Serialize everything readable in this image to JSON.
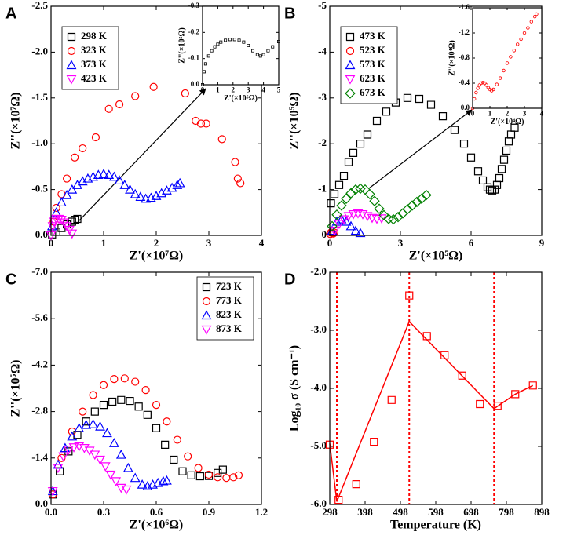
{
  "chart_data": [
    {
      "type": "scatter",
      "label": "A",
      "xlabel": "Z'(×10⁷Ω)",
      "ylabel": "Z''(×10⁷Ω)",
      "legend": "upper left",
      "xlim": [
        0,
        4
      ],
      "xticks": [
        0,
        1,
        2,
        3,
        4
      ],
      "ylim": [
        0,
        -2.5
      ],
      "yticks": [
        {
          "value": 0,
          "label": "0.0"
        },
        -0.5,
        {
          "value": -1,
          "label": "-1.0"
        },
        -1.5,
        {
          "value": -2,
          "label": "-2.0"
        },
        -2.5
      ],
      "series": [
        {
          "name": "298 K",
          "color": "#000000",
          "marker": "square",
          "x": [
            0.02,
            0.1,
            0.2,
            0.3,
            0.4,
            0.45,
            0.5
          ],
          "y": [
            -0.01,
            -0.04,
            -0.08,
            -0.12,
            -0.15,
            -0.17,
            -0.18
          ]
        },
        {
          "name": "323 K",
          "color": "#ff0000",
          "marker": "circle",
          "x": [
            0.05,
            0.1,
            0.2,
            0.3,
            0.45,
            0.6,
            0.85,
            1.1,
            1.3,
            1.6,
            1.95,
            2.55,
            2.75,
            2.85,
            2.95,
            3.25,
            3.5,
            3.55,
            3.6
          ],
          "y": [
            -0.15,
            -0.3,
            -0.45,
            -0.62,
            -0.85,
            -0.95,
            -1.07,
            -1.38,
            -1.43,
            -1.52,
            -1.62,
            -1.55,
            -1.25,
            -1.22,
            -1.22,
            -1.05,
            -0.8,
            -0.62,
            -0.57
          ]
        },
        {
          "name": "373 K",
          "color": "#0000ff",
          "marker": "triangle",
          "x": [
            0.02,
            0.1,
            0.2,
            0.3,
            0.4,
            0.5,
            0.6,
            0.7,
            0.8,
            0.9,
            1.0,
            1.1,
            1.2,
            1.3,
            1.4,
            1.5,
            1.6,
            1.7,
            1.8,
            1.9,
            2.0,
            2.1,
            2.2,
            2.3,
            2.4,
            2.45
          ],
          "y": [
            -0.1,
            -0.25,
            -0.36,
            -0.44,
            -0.5,
            -0.55,
            -0.59,
            -0.62,
            -0.64,
            -0.66,
            -0.67,
            -0.66,
            -0.64,
            -0.6,
            -0.55,
            -0.5,
            -0.45,
            -0.42,
            -0.4,
            -0.41,
            -0.43,
            -0.46,
            -0.49,
            -0.52,
            -0.55,
            -0.57
          ]
        },
        {
          "name": "423 K",
          "color": "#ff00ff",
          "marker": "triangle-down",
          "x": [
            0,
            0.03,
            0.06,
            0.1,
            0.15,
            0.2,
            0.25,
            0.3,
            0.35,
            0.4
          ],
          "y": [
            0,
            -0.1,
            -0.15,
            -0.18,
            -0.18,
            -0.17,
            -0.14,
            -0.1,
            -0.06,
            -0.02
          ]
        }
      ]
    },
    {
      "type": "scatter",
      "xlabel": "Z'(×10⁵Ω)",
      "ylabel": "Z''(×10⁵Ω)",
      "xlim": [
        0,
        5
      ],
      "xticks": [
        0,
        1,
        2,
        3,
        4,
        5
      ],
      "ylim": [
        0,
        -0.3
      ],
      "yticks": [
        {
          "value": 0,
          "label": "0.0"
        },
        -0.1,
        -0.2,
        -0.3
      ],
      "series": [
        {
          "color": "#000000",
          "marker": "square",
          "x": [
            0,
            0.1,
            0.2,
            0.4,
            0.6,
            0.8,
            1.0,
            1.2,
            1.5,
            1.8,
            2.1,
            2.4,
            2.7,
            3.0,
            3.3,
            3.6,
            3.8,
            4.0,
            4.3,
            4.6,
            5.0
          ],
          "y": [
            0,
            -0.05,
            -0.08,
            -0.11,
            -0.13,
            -0.145,
            -0.155,
            -0.163,
            -0.17,
            -0.173,
            -0.173,
            -0.17,
            -0.163,
            -0.15,
            -0.13,
            -0.115,
            -0.11,
            -0.115,
            -0.13,
            -0.145,
            -0.165
          ]
        }
      ]
    },
    {
      "type": "scatter",
      "label": "B",
      "xlabel": "Z'(×10⁵Ω)",
      "ylabel": "Z''(×10⁵Ω)",
      "legend": "upper left",
      "xlim": [
        0,
        9
      ],
      "xticks": [
        0,
        3,
        6,
        9
      ],
      "ylim": [
        0,
        -5
      ],
      "yticks": [
        0,
        -1,
        -2,
        -3,
        -4,
        -5
      ],
      "series": [
        {
          "name": "473 K",
          "color": "#000000",
          "marker": "square",
          "x": [
            0.05,
            0.2,
            0.4,
            0.6,
            0.8,
            1.0,
            1.3,
            1.6,
            2.0,
            2.4,
            2.8,
            3.3,
            3.8,
            4.3,
            4.8,
            5.3,
            5.7,
            6.0,
            6.3,
            6.5,
            6.7,
            6.8,
            6.9,
            7.0,
            7.1,
            7.2,
            7.3,
            7.4,
            7.5,
            7.6,
            7.7,
            7.85
          ],
          "y": [
            -0.7,
            -0.9,
            -1.1,
            -1.3,
            -1.6,
            -1.8,
            -2.0,
            -2.2,
            -2.5,
            -2.7,
            -2.9,
            -3.0,
            -2.98,
            -2.85,
            -2.6,
            -2.3,
            -2.0,
            -1.7,
            -1.4,
            -1.2,
            -1.05,
            -1.0,
            -0.98,
            -1.0,
            -1.1,
            -1.25,
            -1.45,
            -1.65,
            -1.85,
            -2.05,
            -2.2,
            -2.35
          ]
        },
        {
          "name": "523 K",
          "color": "#ff0000",
          "marker": "circle",
          "x": [
            0.02,
            0.05,
            0.1,
            0.15,
            0.2
          ],
          "y": [
            -0.03,
            -0.06,
            -0.05,
            -0.04,
            -0.06
          ]
        },
        {
          "name": "573 K",
          "color": "#0000ff",
          "marker": "triangle",
          "x": [
            0.1,
            0.3,
            0.5,
            0.7,
            0.9,
            1.1,
            1.3
          ],
          "y": [
            -0.1,
            -0.3,
            -0.35,
            -0.3,
            -0.2,
            -0.1,
            -0.05
          ]
        },
        {
          "name": "623 K",
          "color": "#ff00ff",
          "marker": "triangle-down",
          "x": [
            0.2,
            0.4,
            0.6,
            0.8,
            1.0,
            1.2,
            1.4,
            1.6,
            1.8,
            2.0,
            2.2
          ],
          "y": [
            -0.1,
            -0.25,
            -0.35,
            -0.42,
            -0.46,
            -0.48,
            -0.46,
            -0.42,
            -0.38,
            -0.36,
            -0.37
          ]
        },
        {
          "name": "673 K",
          "color": "#008000",
          "marker": "diamond",
          "x": [
            0.1,
            0.3,
            0.5,
            0.7,
            0.9,
            1.1,
            1.3,
            1.5,
            1.7,
            1.9,
            2.1,
            2.3,
            2.5,
            2.7,
            2.9,
            3.1,
            3.3,
            3.5,
            3.7,
            3.9,
            4.1
          ],
          "y": [
            -0.2,
            -0.45,
            -0.65,
            -0.8,
            -0.92,
            -1.0,
            -1.02,
            -1.0,
            -0.9,
            -0.75,
            -0.58,
            -0.44,
            -0.36,
            -0.35,
            -0.4,
            -0.48,
            -0.57,
            -0.65,
            -0.73,
            -0.8,
            -0.88
          ]
        }
      ]
    },
    {
      "type": "scatter",
      "xlabel": "Z'(×10⁴Ω)",
      "ylabel": "Z''(×10⁴Ω)",
      "xlim": [
        0,
        4
      ],
      "xticks": [
        0,
        1,
        2,
        3,
        4
      ],
      "ylim": [
        0,
        -1.6
      ],
      "yticks": [
        {
          "value": 0,
          "label": "0.0"
        },
        -0.4,
        -0.8,
        -1.2,
        -1.6
      ],
      "series": [
        {
          "color": "#ff0000",
          "marker": "circle",
          "x": [
            0,
            0.1,
            0.2,
            0.3,
            0.4,
            0.5,
            0.6,
            0.7,
            0.8,
            0.9,
            1.0,
            1.1,
            1.2,
            1.4,
            1.6,
            1.8,
            2.0,
            2.2,
            2.4,
            2.6,
            2.8,
            3.0,
            3.2,
            3.4,
            3.6,
            3.7
          ],
          "y": [
            0,
            -0.15,
            -0.25,
            -0.32,
            -0.37,
            -0.4,
            -0.41,
            -0.4,
            -0.37,
            -0.33,
            -0.3,
            -0.28,
            -0.3,
            -0.38,
            -0.48,
            -0.6,
            -0.72,
            -0.82,
            -0.92,
            -1.02,
            -1.1,
            -1.2,
            -1.28,
            -1.38,
            -1.46,
            -1.5
          ]
        }
      ]
    },
    {
      "type": "scatter",
      "label": "C",
      "xlabel": "Z'(×10⁶Ω)",
      "ylabel": "Z''(×10⁵Ω)",
      "legend": "upper right",
      "xlim": [
        0,
        1.2
      ],
      "xticks": [
        {
          "value": 0,
          "label": "0.0"
        },
        0.3,
        0.6,
        0.9,
        1.2
      ],
      "ylim": [
        0,
        -7
      ],
      "yticks": [
        {
          "value": 0,
          "label": "0.0"
        },
        -1.4,
        -2.8,
        -4.2,
        -5.6,
        {
          "value": -7,
          "label": "-7.0"
        }
      ],
      "series": [
        {
          "name": "723 K",
          "color": "#000000",
          "marker": "square",
          "x": [
            0.01,
            0.05,
            0.1,
            0.15,
            0.2,
            0.25,
            0.3,
            0.35,
            0.4,
            0.45,
            0.5,
            0.55,
            0.6,
            0.65,
            0.7,
            0.75,
            0.8,
            0.85,
            0.9,
            0.95,
            0.98
          ],
          "y": [
            -0.3,
            -1.0,
            -1.6,
            -2.1,
            -2.5,
            -2.8,
            -3.0,
            -3.1,
            -3.15,
            -3.12,
            -2.95,
            -2.7,
            -2.3,
            -1.8,
            -1.35,
            -1.0,
            -0.88,
            -0.85,
            -0.86,
            -0.95,
            -1.05
          ]
        },
        {
          "name": "773 K",
          "color": "#ff0000",
          "marker": "circle",
          "x": [
            0.01,
            0.06,
            0.12,
            0.18,
            0.24,
            0.3,
            0.36,
            0.42,
            0.48,
            0.54,
            0.6,
            0.66,
            0.72,
            0.78,
            0.84,
            0.9,
            0.95,
            1.0,
            1.04,
            1.07
          ],
          "y": [
            -0.3,
            -1.4,
            -2.2,
            -2.8,
            -3.3,
            -3.6,
            -3.78,
            -3.8,
            -3.7,
            -3.45,
            -3.0,
            -2.5,
            -1.95,
            -1.45,
            -1.1,
            -0.9,
            -0.82,
            -0.8,
            -0.82,
            -0.88
          ]
        },
        {
          "name": "823 K",
          "color": "#0000ff",
          "marker": "triangle",
          "x": [
            0.01,
            0.04,
            0.08,
            0.12,
            0.16,
            0.2,
            0.24,
            0.28,
            0.32,
            0.36,
            0.4,
            0.44,
            0.48,
            0.52,
            0.55,
            0.58,
            0.61,
            0.64,
            0.66
          ],
          "y": [
            -0.4,
            -1.2,
            -1.7,
            -2.05,
            -2.3,
            -2.4,
            -2.42,
            -2.35,
            -2.15,
            -1.85,
            -1.5,
            -1.1,
            -0.8,
            -0.6,
            -0.55,
            -0.6,
            -0.65,
            -0.7,
            -0.72
          ]
        },
        {
          "name": "873 K",
          "color": "#ff00ff",
          "marker": "triangle-down",
          "x": [
            0.01,
            0.04,
            0.07,
            0.1,
            0.13,
            0.16,
            0.19,
            0.22,
            0.25,
            0.28,
            0.31,
            0.34,
            0.37,
            0.4,
            0.43
          ],
          "y": [
            -0.4,
            -1.1,
            -1.45,
            -1.65,
            -1.72,
            -1.75,
            -1.7,
            -1.62,
            -1.5,
            -1.35,
            -1.15,
            -0.9,
            -0.7,
            -0.5,
            -0.45
          ]
        }
      ]
    },
    {
      "type": "scatter",
      "label": "D",
      "xlabel": "Temperature (K)",
      "ylabel": "Log₁₀ σ (S cm⁻¹)",
      "xlim": [
        298,
        898
      ],
      "xticks": [
        298,
        398,
        498,
        598,
        698,
        798,
        898
      ],
      "ylim": [
        -6,
        -2
      ],
      "yticks": [
        {
          "value": -6,
          "label": "-6.0"
        },
        {
          "value": -5,
          "label": "-5.0"
        },
        {
          "value": -4,
          "label": "-4.0"
        },
        {
          "value": -3,
          "label": "-3.0"
        },
        {
          "value": -2,
          "label": "-2.0"
        }
      ],
      "vlines": [
        318,
        523,
        763
      ],
      "series": [
        {
          "color": "#ff0000",
          "marker": "square",
          "x": [
            298,
            323,
            373,
            423,
            473,
            523,
            573,
            623,
            673,
            723,
            773,
            823,
            873
          ],
          "y": [
            -4.97,
            -5.92,
            -5.65,
            -4.92,
            -4.2,
            -2.4,
            -3.1,
            -3.43,
            -3.78,
            -4.27,
            -4.3,
            -4.1,
            -3.95
          ]
        },
        {
          "color": "#ff0000",
          "marker": "line",
          "x": [
            298,
            318,
            523,
            763,
            823,
            873
          ],
          "y": [
            -4.95,
            -5.95,
            -2.85,
            -4.35,
            -4.1,
            -3.95
          ]
        }
      ]
    }
  ]
}
